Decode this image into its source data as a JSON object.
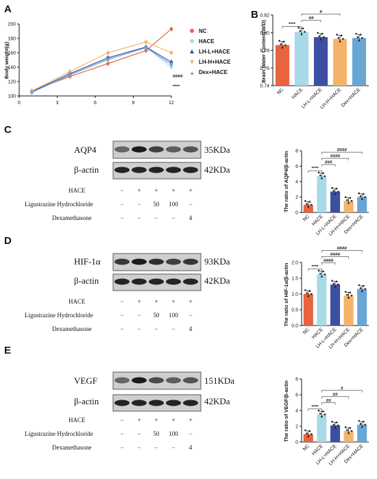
{
  "panels": {
    "A": "A",
    "B": "B",
    "C": "C",
    "D": "D",
    "E": "E"
  },
  "colors": {
    "NC": "#e8643f",
    "HACE": "#a8d9e8",
    "LH-L+HACE": "#3d4fa3",
    "LH-H+HACE": "#f5b36a",
    "Dex+HACE": "#6aa6d4"
  },
  "chart_data": [
    {
      "panel": "A",
      "type": "line",
      "ylabel": "Body weight(g)",
      "xlabel": "",
      "x": [
        1,
        4,
        7,
        10,
        12
      ],
      "xticks": [
        "0",
        "3",
        "6",
        "9",
        "12"
      ],
      "yticks": [
        "100",
        "120",
        "140",
        "160",
        "180",
        "200"
      ],
      "ylim": [
        100,
        200
      ],
      "xlim": [
        0,
        12
      ],
      "series": [
        {
          "name": "NC",
          "values": [
            107,
            127,
            145,
            163,
            193
          ]
        },
        {
          "name": "HACE",
          "values": [
            106,
            130,
            150,
            168,
            140
          ]
        },
        {
          "name": "LH-L+HACE",
          "values": [
            106,
            131,
            153,
            168,
            147
          ]
        },
        {
          "name": "LH-H+HACE",
          "values": [
            107,
            134,
            160,
            175,
            160
          ]
        },
        {
          "name": "Dex+HACE",
          "values": [
            105,
            129,
            151,
            167,
            144
          ]
        }
      ],
      "annotations": [
        "####",
        "****"
      ],
      "legend": "right"
    },
    {
      "panel": "B",
      "type": "bar",
      "ylabel": "Brain Water Content(W/D)",
      "categories": [
        "NC",
        "HACE",
        "LH-L+HACE",
        "LH-H+HACE",
        "Dex+HACE"
      ],
      "values": [
        0.786,
        0.801,
        0.795,
        0.793,
        0.794
      ],
      "yticks": [
        "0.74",
        "0.76",
        "0.78",
        "0.80",
        "0.82"
      ],
      "ylim": [
        0.74,
        0.82
      ],
      "annotations": [
        "****",
        "##",
        "#"
      ]
    },
    {
      "panel": "C",
      "type": "bar",
      "ylabel": "The ratio of AQP4/β-actin",
      "categories": [
        "NC",
        "HACE",
        "LH-L+HACE",
        "LH-H+HACE",
        "Dex+HACE"
      ],
      "values": [
        1.0,
        4.7,
        2.7,
        1.5,
        2.0
      ],
      "yticks": [
        "0",
        "2",
        "4",
        "6",
        "8"
      ],
      "ylim": [
        0,
        8
      ],
      "annotations": [
        "****",
        "###",
        "####",
        "####"
      ]
    },
    {
      "panel": "D",
      "type": "bar",
      "ylabel": "The ratio of HIF-1α/β-actin",
      "categories": [
        "NC",
        "HACE",
        "LH-L+HACE",
        "LH-H+HACE",
        "Dex+HACE"
      ],
      "values": [
        1.0,
        1.62,
        1.3,
        0.95,
        1.16
      ],
      "yticks": [
        "0.0",
        "0.5",
        "1.0",
        "1.5",
        "2.0"
      ],
      "ylim": [
        0,
        2
      ],
      "annotations": [
        "****",
        "####",
        "####",
        "####"
      ]
    },
    {
      "panel": "E",
      "type": "bar",
      "ylabel": "The ratio of VEGF/β-actin",
      "categories": [
        "NC",
        "HACE",
        "LH-L+HACE",
        "LH-H+HACE",
        "Dex+HACE"
      ],
      "values": [
        1.0,
        3.5,
        2.1,
        1.4,
        2.2
      ],
      "yticks": [
        "0",
        "2",
        "4",
        "6",
        "8"
      ],
      "ylim": [
        0,
        8
      ],
      "annotations": [
        "****",
        "##",
        "##",
        "#"
      ]
    }
  ],
  "blots": {
    "C": {
      "target": "AQP4",
      "target_kda": "35KDa",
      "actin": "β-actin",
      "actin_kda": "42KDa"
    },
    "D": {
      "target": "HIF-1α",
      "target_kda": "93KDa",
      "actin": "β-actin",
      "actin_kda": "42KDa"
    },
    "E": {
      "target": "VEGF",
      "target_kda": "151KDa",
      "actin": "β-actin",
      "actin_kda": "42KDa"
    }
  },
  "conditions": {
    "rows": [
      {
        "label": "HACE",
        "marks": [
          "−",
          "+",
          "+",
          "+",
          "+"
        ]
      },
      {
        "label": "Ligustrazine Hydrochloride",
        "marks": [
          "−",
          "−",
          "50",
          "100",
          "−"
        ]
      },
      {
        "label": "Dexamethasone",
        "marks": [
          "−",
          "−",
          "−",
          "−",
          "4"
        ]
      }
    ]
  }
}
